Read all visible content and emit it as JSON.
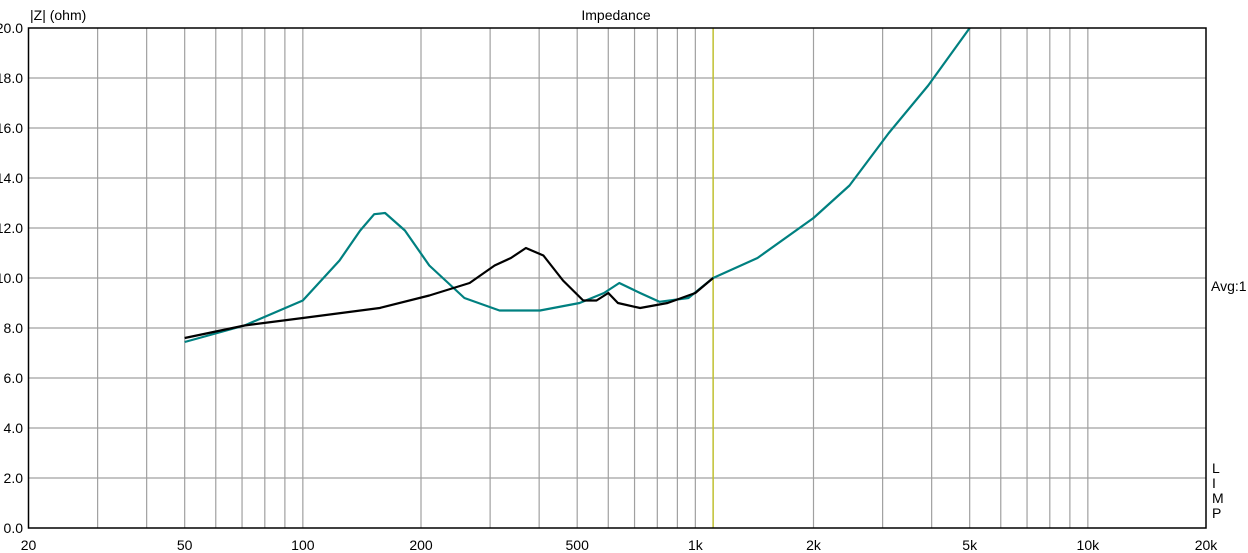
{
  "chart_data": {
    "type": "line",
    "title": "Impedance",
    "ylabel": "|Z| (ohm)",
    "xlabel": "",
    "xscale": "log",
    "xlim": [
      20,
      20000
    ],
    "ylim": [
      0,
      20
    ],
    "grid": true,
    "x_ticks": [
      {
        "value": 20,
        "label": "20"
      },
      {
        "value": 50,
        "label": "50"
      },
      {
        "value": 100,
        "label": "100"
      },
      {
        "value": 200,
        "label": "200"
      },
      {
        "value": 500,
        "label": "500"
      },
      {
        "value": 1000,
        "label": "1k"
      },
      {
        "value": 2000,
        "label": "2k"
      },
      {
        "value": 5000,
        "label": "5k"
      },
      {
        "value": 10000,
        "label": "10k"
      },
      {
        "value": 20000,
        "label": "20k"
      }
    ],
    "y_ticks": [
      {
        "value": 0,
        "label": "0.0"
      },
      {
        "value": 2,
        "label": "2.0"
      },
      {
        "value": 4,
        "label": "4.0"
      },
      {
        "value": 6,
        "label": "6.0"
      },
      {
        "value": 8,
        "label": "8.0"
      },
      {
        "value": 10,
        "label": "10.0"
      },
      {
        "value": 12,
        "label": "12.0"
      },
      {
        "value": 14,
        "label": "14.0"
      },
      {
        "value": 16,
        "label": "16.0"
      },
      {
        "value": 18,
        "label": "18.0"
      },
      {
        "value": 20,
        "label": "20.0"
      }
    ],
    "annotations": {
      "avg": "Avg:1",
      "side_letters": [
        "L",
        "I",
        "M",
        "P"
      ]
    },
    "marker_line": {
      "x": 1110,
      "color": "#c0c030"
    },
    "series": [
      {
        "name": "teal",
        "color": "#008080",
        "x": [
          50,
          71,
          100,
          124,
          140,
          152,
          162,
          182,
          210,
          258,
          317,
          402,
          507,
          585,
          640,
          723,
          810,
          960,
          1110,
          1440,
          2000,
          2470,
          3110,
          3920,
          5000
        ],
        "y": [
          7.44,
          8.1,
          9.1,
          10.7,
          11.9,
          12.55,
          12.6,
          11.9,
          10.5,
          9.2,
          8.7,
          8.7,
          9.0,
          9.4,
          9.8,
          9.4,
          9.05,
          9.2,
          10.0,
          10.8,
          12.4,
          13.7,
          15.8,
          17.7,
          20.0
        ]
      },
      {
        "name": "black",
        "color": "#000000",
        "x": [
          50,
          71,
          100,
          157,
          210,
          266,
          308,
          339,
          370,
          410,
          460,
          518,
          560,
          600,
          635,
          723,
          850,
          1000,
          1110
        ],
        "y": [
          7.6,
          8.1,
          8.4,
          8.8,
          9.3,
          9.8,
          10.5,
          10.8,
          11.2,
          10.9,
          9.9,
          9.1,
          9.1,
          9.4,
          9.0,
          8.8,
          9.0,
          9.4,
          10.0
        ]
      }
    ]
  }
}
